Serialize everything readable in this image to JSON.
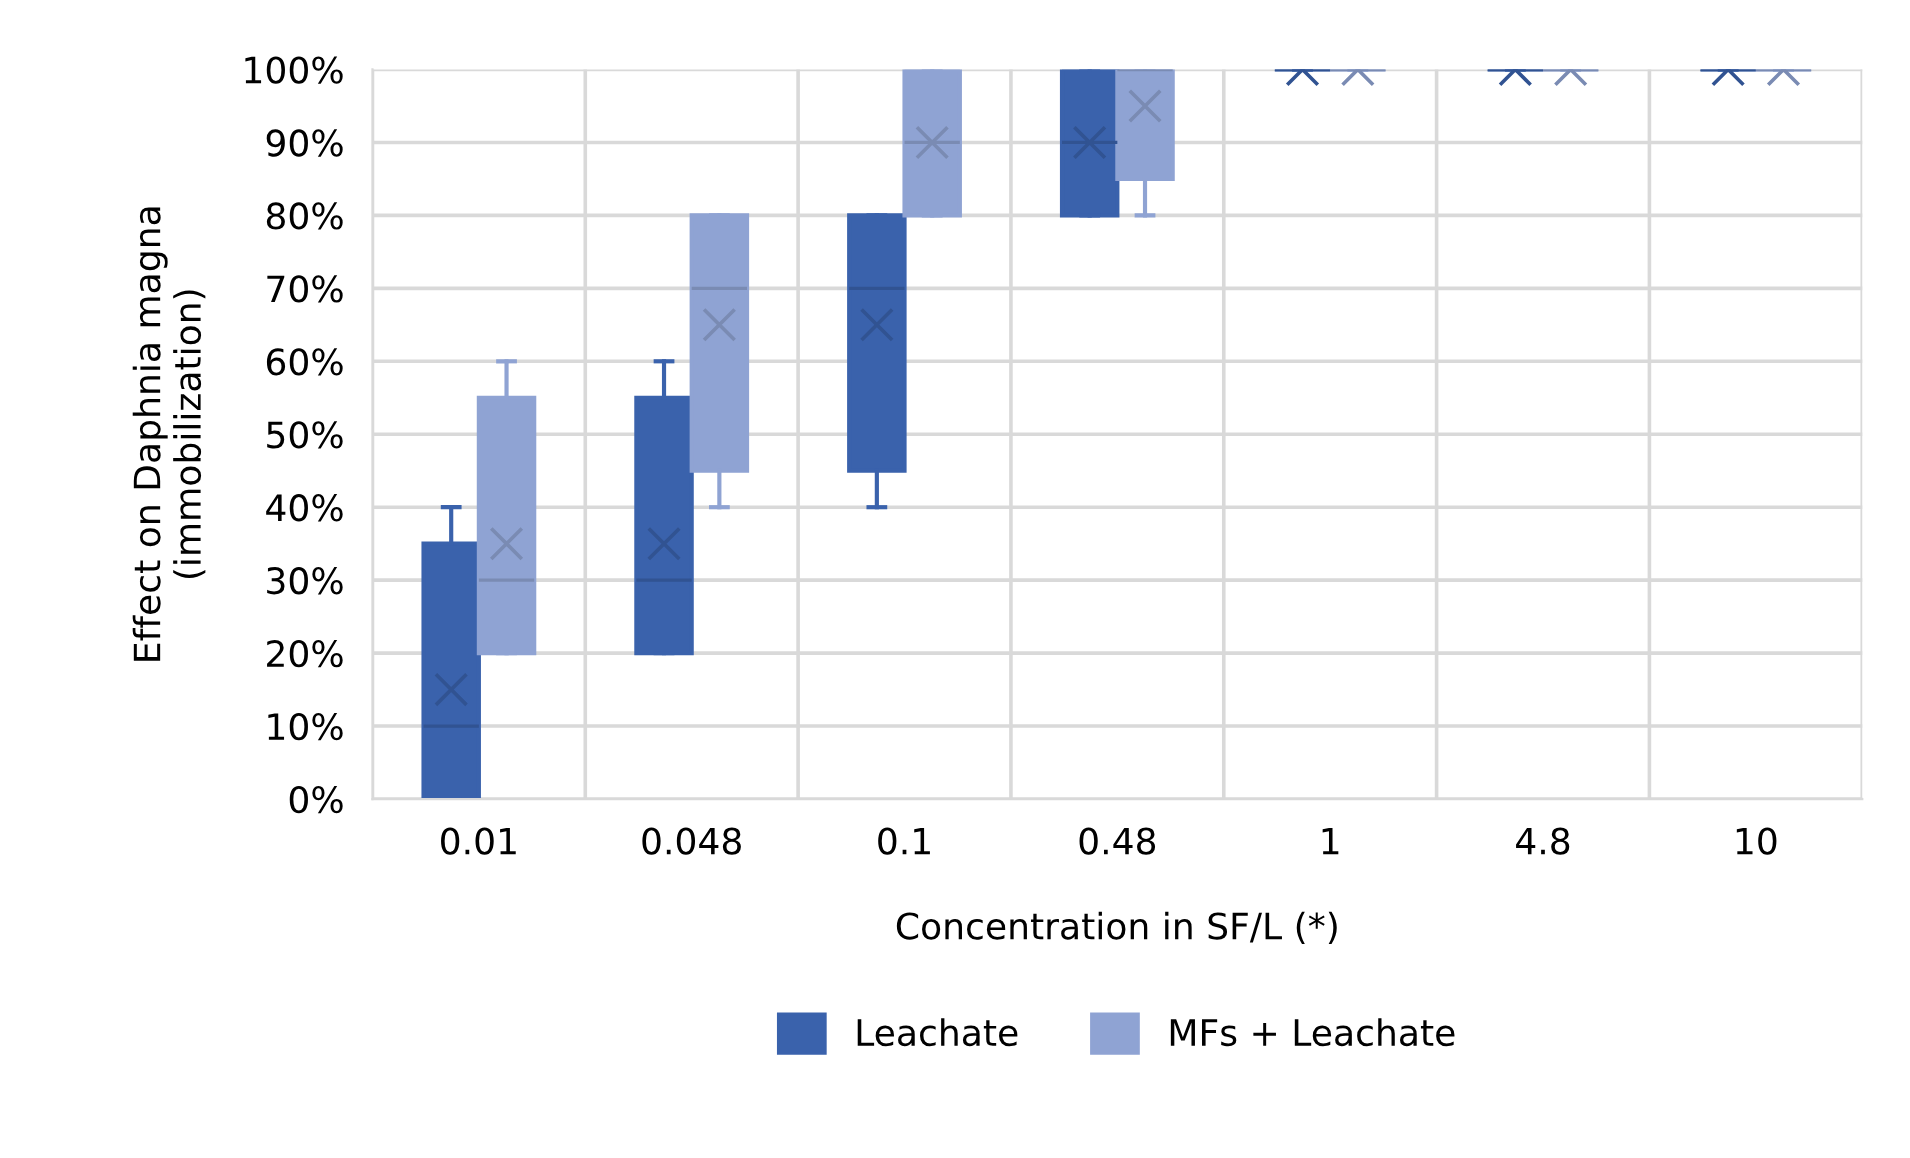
{
  "chart_data": {
    "type": "box",
    "xlabel": "Concentration in SF/L (*)",
    "ylabel": "Effect on Daphnia magna\n(immobilization)",
    "categories": [
      "0.01",
      "0.048",
      "0.1",
      "0.48",
      "1",
      "4.8",
      "10"
    ],
    "ylim": [
      0,
      100
    ],
    "yticks": [
      {
        "value": 0,
        "label": "0%"
      },
      {
        "value": 10,
        "label": "10%"
      },
      {
        "value": 20,
        "label": "20%"
      },
      {
        "value": 30,
        "label": "30%"
      },
      {
        "value": 40,
        "label": "40%"
      },
      {
        "value": 50,
        "label": "50%"
      },
      {
        "value": 60,
        "label": "60%"
      },
      {
        "value": 70,
        "label": "70%"
      },
      {
        "value": 80,
        "label": "80%"
      },
      {
        "value": 90,
        "label": "90%"
      },
      {
        "value": 100,
        "label": "100%"
      }
    ],
    "grid": true,
    "legend": "bottom",
    "series": [
      {
        "name": "Leachate",
        "color": "#3a62ac",
        "boxes": [
          {
            "low": 0,
            "q1": 0,
            "median": 10,
            "q3": 35,
            "high": 40,
            "mean": 15
          },
          {
            "low": 20,
            "q1": 20,
            "median": 30,
            "q3": 55,
            "high": 60,
            "mean": 35
          },
          {
            "low": 40,
            "q1": 45,
            "median": 70,
            "q3": 80,
            "high": 80,
            "mean": 65
          },
          {
            "low": 80,
            "q1": 80,
            "median": 90,
            "q3": 100,
            "high": 100,
            "mean": 90
          },
          {
            "low": 100,
            "q1": 100,
            "median": 100,
            "q3": 100,
            "high": 100,
            "mean": 100
          },
          {
            "low": 100,
            "q1": 100,
            "median": 100,
            "q3": 100,
            "high": 100,
            "mean": 100
          },
          {
            "low": 100,
            "q1": 100,
            "median": 100,
            "q3": 100,
            "high": 100,
            "mean": 100
          }
        ]
      },
      {
        "name": "MFs + Leachate",
        "color": "#8fa3d3",
        "boxes": [
          {
            "low": 20,
            "q1": 20,
            "median": 30,
            "q3": 55,
            "high": 60,
            "mean": 35
          },
          {
            "low": 40,
            "q1": 45,
            "median": 70,
            "q3": 80,
            "high": 80,
            "mean": 65
          },
          {
            "low": 80,
            "q1": 80,
            "median": 90,
            "q3": 100,
            "high": 100,
            "mean": 90
          },
          {
            "low": 80,
            "q1": 85,
            "median": 100,
            "q3": 100,
            "high": 100,
            "mean": 95
          },
          {
            "low": 100,
            "q1": 100,
            "median": 100,
            "q3": 100,
            "high": 100,
            "mean": 100
          },
          {
            "low": 100,
            "q1": 100,
            "median": 100,
            "q3": 100,
            "high": 100,
            "mean": 100
          },
          {
            "low": 100,
            "q1": 100,
            "median": 100,
            "q3": 100,
            "high": 100,
            "mean": 100
          }
        ]
      }
    ]
  }
}
